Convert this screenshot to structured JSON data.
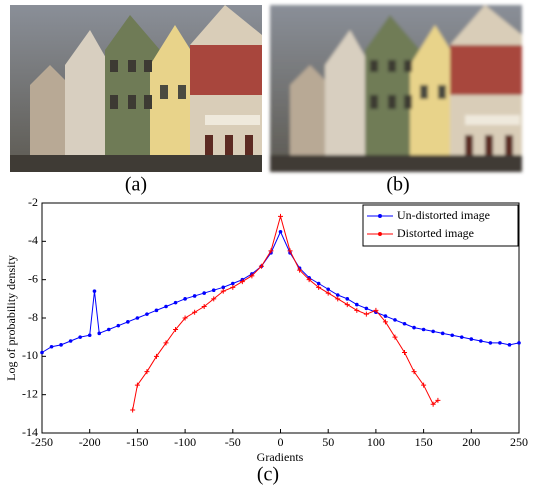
{
  "captions": {
    "a": "(a)",
    "b": "(b)",
    "c": "(c)"
  },
  "chart_data": {
    "type": "line",
    "xlabel": "Gradients",
    "ylabel": "Log of probability density",
    "xlim": [
      -250,
      250
    ],
    "xticks": [
      -250,
      -200,
      -150,
      -100,
      -50,
      0,
      50,
      100,
      150,
      200,
      250
    ],
    "ylim": [
      -14,
      -2
    ],
    "yticks": [
      -14,
      -12,
      -10,
      -8,
      -6,
      -4,
      -2
    ],
    "legend": "upper right",
    "series": [
      {
        "name": "Un-distorted image",
        "color": "#0000ff",
        "x": [
          -250,
          -240,
          -230,
          -220,
          -210,
          -200,
          -195,
          -190,
          -180,
          -170,
          -160,
          -150,
          -140,
          -130,
          -120,
          -110,
          -100,
          -90,
          -80,
          -70,
          -60,
          -50,
          -40,
          -30,
          -20,
          -10,
          0,
          10,
          20,
          30,
          40,
          50,
          60,
          70,
          80,
          90,
          100,
          110,
          120,
          130,
          140,
          150,
          160,
          170,
          180,
          190,
          200,
          210,
          220,
          230,
          240,
          250
        ],
        "values": [
          -9.8,
          -9.5,
          -9.4,
          -9.2,
          -9.0,
          -8.9,
          -6.6,
          -8.8,
          -8.6,
          -8.4,
          -8.2,
          -8.0,
          -7.8,
          -7.6,
          -7.4,
          -7.2,
          -7.0,
          -6.85,
          -6.7,
          -6.55,
          -6.4,
          -6.2,
          -6.0,
          -5.7,
          -5.3,
          -4.6,
          -3.5,
          -4.6,
          -5.4,
          -5.9,
          -6.2,
          -6.5,
          -6.8,
          -7.0,
          -7.3,
          -7.5,
          -7.7,
          -7.9,
          -8.1,
          -8.3,
          -8.5,
          -8.6,
          -8.7,
          -8.8,
          -8.9,
          -9.0,
          -9.1,
          -9.2,
          -9.3,
          -9.3,
          -9.4,
          -9.3
        ]
      },
      {
        "name": "Distorted image",
        "color": "#ff0000",
        "x": [
          -155,
          -150,
          -140,
          -130,
          -120,
          -110,
          -100,
          -90,
          -80,
          -70,
          -60,
          -50,
          -40,
          -30,
          -20,
          -10,
          0,
          10,
          20,
          30,
          40,
          50,
          60,
          70,
          80,
          90,
          100,
          110,
          120,
          130,
          140,
          150,
          160,
          165
        ],
        "values": [
          -12.8,
          -11.5,
          -10.8,
          -10.0,
          -9.3,
          -8.6,
          -8.0,
          -7.7,
          -7.4,
          -7.0,
          -6.6,
          -6.4,
          -6.1,
          -5.8,
          -5.3,
          -4.5,
          -2.7,
          -4.5,
          -5.5,
          -6.0,
          -6.4,
          -6.7,
          -7.0,
          -7.3,
          -7.6,
          -7.8,
          -7.6,
          -8.2,
          -9.0,
          -9.8,
          -10.8,
          -11.5,
          -12.5,
          -12.3
        ]
      }
    ]
  }
}
